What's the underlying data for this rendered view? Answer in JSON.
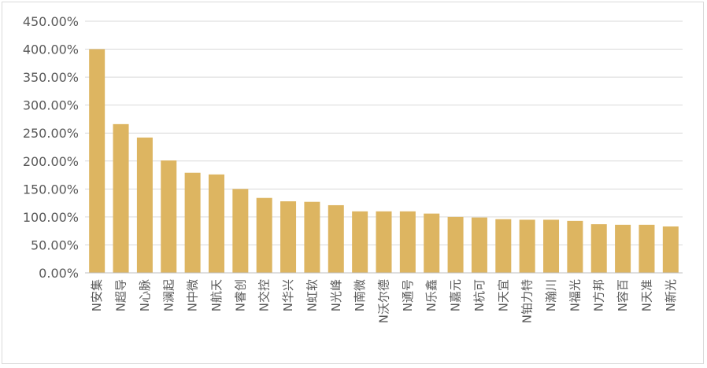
{
  "chart_data": {
    "type": "bar",
    "categories": [
      "N安集",
      "N超导",
      "N心脉",
      "N澜起",
      "N中微",
      "N航天",
      "N睿创",
      "N交控",
      "N华兴",
      "N虹软",
      "N光峰",
      "N南微",
      "N沃尔德",
      "N通号",
      "N乐鑫",
      "N嘉元",
      "N杭可",
      "N天宜",
      "N铂力特",
      "N瀚川",
      "N福光",
      "N方邦",
      "N容百",
      "N天准",
      "N新光"
    ],
    "values": [
      400.0,
      266.0,
      242.0,
      201.0,
      179.0,
      176.0,
      150.0,
      134.0,
      128.0,
      127.0,
      121.0,
      110.0,
      110.0,
      110.0,
      106.0,
      100.0,
      99.0,
      96.0,
      95.0,
      95.0,
      93.0,
      87.0,
      86.0,
      86.0,
      83.0
    ],
    "value_unit": "%",
    "title": "",
    "xlabel": "",
    "ylabel": "",
    "ylim": [
      0,
      450
    ],
    "yticks": [
      "0.00%",
      "50.00%",
      "100.00%",
      "150.00%",
      "200.00%",
      "250.00%",
      "300.00%",
      "350.00%",
      "400.00%",
      "450.00%"
    ],
    "grid": true,
    "legend": "none",
    "colors": {
      "bar": "#DDB561",
      "grid": "#d9d9d9",
      "axis": "#bfbfbf",
      "text": "#595959"
    }
  }
}
